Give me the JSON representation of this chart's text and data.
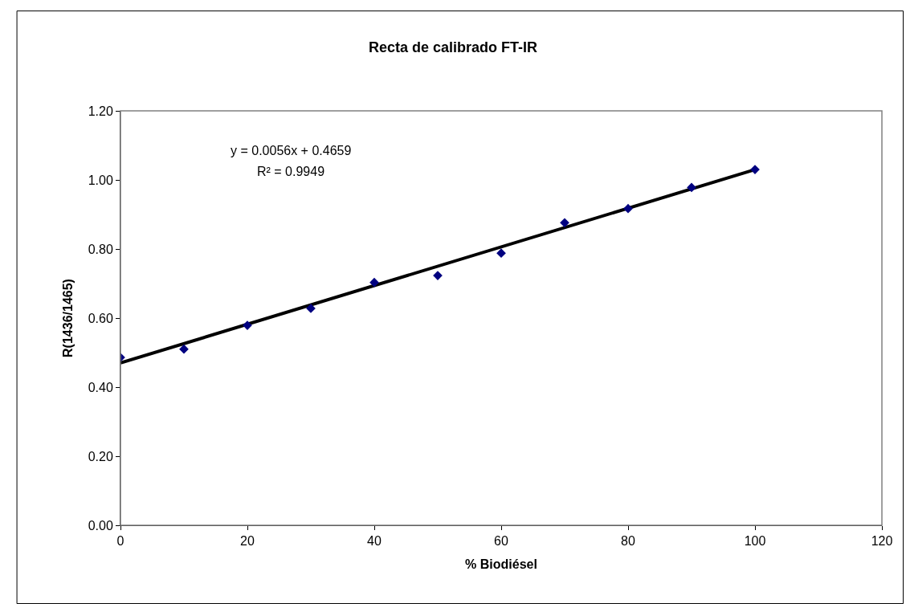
{
  "chart_data": {
    "type": "scatter",
    "title": "Recta de calibrado FT-IR",
    "xlabel": "% Biodiésel",
    "ylabel": "R(1436/1465)",
    "x": [
      0,
      10,
      20,
      30,
      40,
      50,
      60,
      70,
      80,
      90,
      100
    ],
    "series": [
      {
        "type": "line",
        "color": "#000000",
        "marker": "none",
        "line_style": "solid",
        "x": [
          0,
          100
        ],
        "values": [
          0.47,
          1.03
        ]
      },
      {
        "color": "#000080",
        "marker": "diamond",
        "values": [
          0.486,
          0.51,
          0.579,
          0.628,
          0.703,
          0.723,
          0.788,
          0.876,
          0.917,
          0.978,
          1.03
        ]
      }
    ],
    "annotations": [
      "y = 0.0056x + 0.4659",
      "R² = 0.9949"
    ],
    "xlim": [
      0,
      120
    ],
    "xticks": [
      0,
      20,
      40,
      60,
      80,
      100,
      120
    ],
    "ylim": [
      0,
      1.2
    ],
    "yticks": [
      {
        "value": 0,
        "label": "0.00"
      },
      {
        "value": 0.2,
        "label": "0.20"
      },
      {
        "value": 0.4,
        "label": "0.40"
      },
      {
        "value": 0.6,
        "label": "0.60"
      },
      {
        "value": 0.8,
        "label": "0.80"
      },
      {
        "value": 1.0,
        "label": "1.00"
      },
      {
        "value": 1.2,
        "label": "1.20"
      }
    ]
  }
}
